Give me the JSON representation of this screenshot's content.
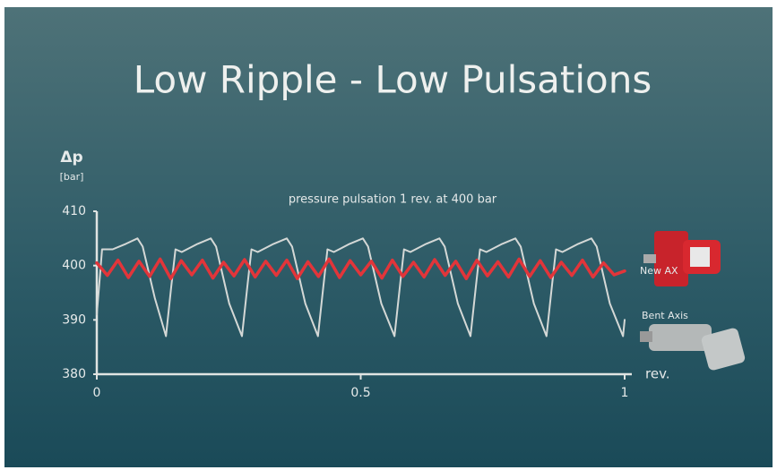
{
  "chart_data": {
    "type": "line",
    "title": "Low Ripple - Low Pulsations",
    "subtitle": "pressure pulsation 1 rev. at 400 bar",
    "y_label": "Δp",
    "y_unit": "[bar]",
    "x_label": "rev.",
    "xlim": [
      0,
      1
    ],
    "xticks": [
      0,
      0.5,
      1
    ],
    "ylim": [
      380,
      410
    ],
    "yticks": [
      380,
      390,
      400,
      410
    ],
    "series": [
      {
        "name": "Bent Axis",
        "color": "#d4d8d6",
        "x": [
          0,
          0.01,
          0.03,
          0.055,
          0.077,
          0.087,
          0.11,
          0.131,
          0.141,
          0.149,
          0.161,
          0.191,
          0.216,
          0.226,
          0.251,
          0.275,
          0.285,
          0.293,
          0.305,
          0.335,
          0.36,
          0.37,
          0.395,
          0.419,
          0.429,
          0.437,
          0.449,
          0.479,
          0.504,
          0.514,
          0.539,
          0.564,
          0.574,
          0.582,
          0.594,
          0.624,
          0.649,
          0.659,
          0.684,
          0.708,
          0.718,
          0.726,
          0.738,
          0.768,
          0.793,
          0.803,
          0.828,
          0.852,
          0.862,
          0.87,
          0.882,
          0.912,
          0.937,
          0.947,
          0.972,
          0.997,
          1
        ],
        "values": [
          391,
          403,
          403,
          404,
          405,
          403.5,
          394,
          387,
          396,
          403,
          402.5,
          404,
          405,
          403.5,
          393,
          387,
          396,
          403,
          402.5,
          404,
          405,
          403.5,
          393,
          387,
          396,
          403,
          402.5,
          404,
          405,
          403.5,
          393,
          387,
          396,
          403,
          402.5,
          404,
          405,
          403.5,
          393,
          387,
          396,
          403,
          402.5,
          404,
          405,
          403.5,
          393,
          387,
          396,
          403,
          402.5,
          404,
          405,
          403.5,
          393,
          387,
          390
        ]
      },
      {
        "name": "New AX",
        "color": "#e2353a",
        "x": [
          0,
          0.02,
          0.04,
          0.06,
          0.08,
          0.1,
          0.12,
          0.14,
          0.16,
          0.18,
          0.2,
          0.22,
          0.24,
          0.26,
          0.28,
          0.3,
          0.32,
          0.34,
          0.36,
          0.38,
          0.4,
          0.42,
          0.44,
          0.46,
          0.48,
          0.5,
          0.52,
          0.54,
          0.56,
          0.58,
          0.6,
          0.62,
          0.64,
          0.66,
          0.68,
          0.7,
          0.72,
          0.74,
          0.76,
          0.78,
          0.8,
          0.82,
          0.84,
          0.86,
          0.88,
          0.9,
          0.92,
          0.94,
          0.96,
          0.98,
          1
        ],
        "values": [
          400.5,
          398.2,
          401,
          397.8,
          400.8,
          398,
          401.2,
          397.6,
          400.9,
          398.3,
          401,
          397.7,
          400.6,
          398.1,
          401.1,
          397.9,
          400.8,
          398.2,
          401,
          397.6,
          400.7,
          398,
          401.2,
          397.8,
          400.9,
          398.3,
          400.8,
          397.7,
          401,
          398,
          400.6,
          397.9,
          401.1,
          398.2,
          400.8,
          397.6,
          401,
          398.1,
          400.7,
          397.9,
          401.2,
          398,
          400.9,
          397.8,
          400.6,
          398.2,
          401,
          397.9,
          400.5,
          398.3,
          399
        ]
      }
    ]
  }
}
